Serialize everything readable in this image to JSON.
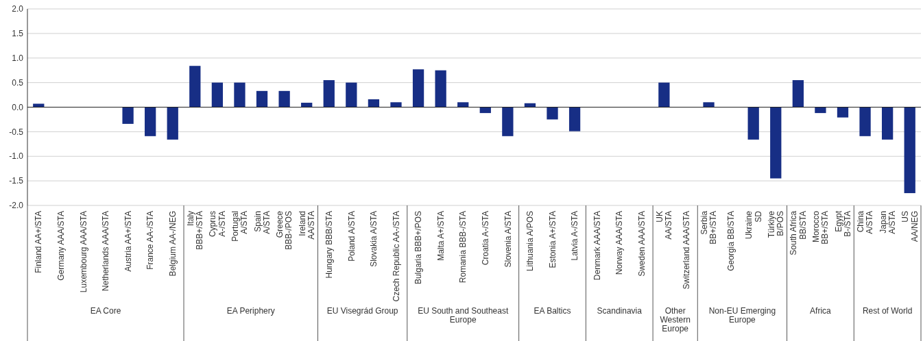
{
  "chart_data": {
    "type": "bar",
    "categories": [
      "Finland AA+/STA",
      "Germany AAA/STA",
      "Luxembourg AAA/STA",
      "Netherlands AAA/STA",
      "Austria AA+/STA",
      "France AA-/STA",
      "Belgium AA-/NEG",
      "Italy\nBBB+/STA",
      "Cyprus\nA-/STA",
      "Portugal\nA/STA",
      "Spain\nA/STA",
      "Greece\nBBB-/POS",
      "Ireland\nAA/STA",
      "Hungary BBB/STA",
      "Poland A/STA",
      "Slovakia A/STA",
      "Czech Republic AA-/STA",
      "Bulgaria BBB+/POS",
      "Malta A+/STA",
      "Romania BBB-/STA",
      "Croatia A-/STA",
      "Slovenia A/STA",
      "Lithuania A/POS",
      "Estonia A+/STA",
      "Latvia A-/STA",
      "Denmark AAA/STA",
      "Norway AAA/STA",
      "Sweden AAA/STA",
      "UK\nAA/STA",
      "Switzerland AAA/STA",
      "Serbia\nBB+/STA",
      "Georgia BB/STA",
      "Ukraine\nSD",
      "Türkiye\nB/POS",
      "South Africa\nBB/STA",
      "Morocco\nBB+/STA",
      "Egypt\nB-/STA",
      "China\nA/STA",
      "Japan\nA/STA",
      "US\nAA/NEG"
    ],
    "values": [
      0.07,
      0,
      0,
      0,
      -0.34,
      -0.59,
      -0.66,
      0.84,
      0.5,
      0.5,
      0.33,
      0.33,
      0.09,
      0.55,
      0.5,
      0.16,
      0.1,
      0.77,
      0.75,
      0.1,
      -0.12,
      -0.59,
      0.08,
      -0.25,
      -0.49,
      0,
      0,
      0,
      0.5,
      0,
      0.1,
      0,
      -0.66,
      -1.45,
      0.55,
      -0.12,
      -0.21,
      -0.59,
      -0.66,
      -1.75
    ],
    "color": "#172e85",
    "ylim": [
      -2,
      2
    ],
    "yticks": [
      {
        "value": -2,
        "label": "-2.0"
      },
      {
        "value": -1.5,
        "label": "-1.5"
      },
      {
        "value": -1,
        "label": "-1.0"
      },
      {
        "value": -0.5,
        "label": "-0.5"
      },
      {
        "value": 0,
        "label": "0.0"
      },
      {
        "value": 0.5,
        "label": "0.5"
      },
      {
        "value": 1,
        "label": "1.0"
      },
      {
        "value": 1.5,
        "label": "1.5"
      },
      {
        "value": 2,
        "label": "2.0"
      }
    ],
    "grid": "y",
    "annotations": [
      "EA Core",
      "EA Periphery",
      "EU Visegrád Group",
      "EU South and Southeast\nEurope",
      "EA Baltics",
      "Scandinavia",
      "Other\nWestern\nEurope",
      "Non-EU Emerging\nEurope",
      "Africa",
      "Rest of World"
    ]
  }
}
